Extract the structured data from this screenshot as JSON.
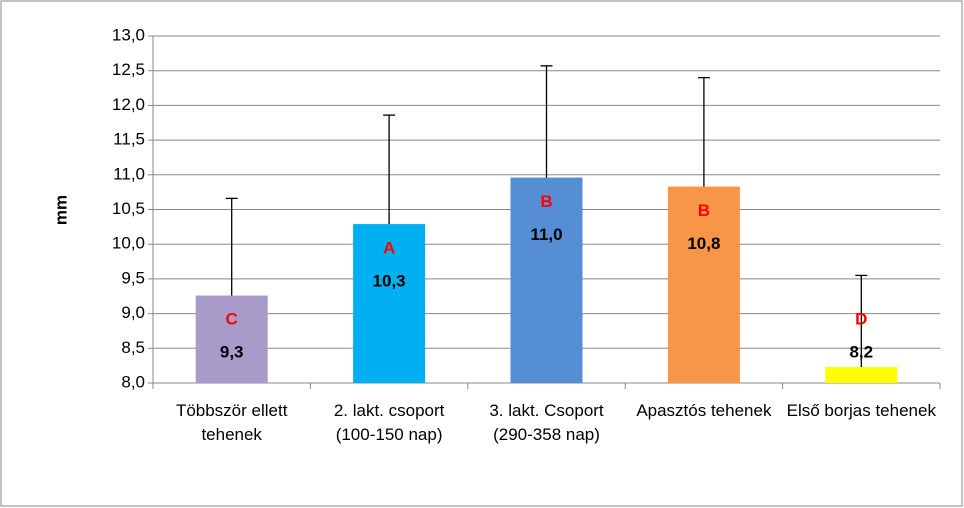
{
  "chart_data": {
    "type": "bar",
    "ylabel": "mm",
    "categories": [
      "Többször ellett tehenek",
      "2. lakt. csoport (100-150 nap)",
      "3. lakt. Csoport (290-358 nap)",
      "Apasztós tehenek",
      "Első borjas tehenek"
    ],
    "values": [
      9.26,
      10.29,
      10.96,
      10.83,
      8.23
    ],
    "value_labels": [
      "9,3",
      "10,3",
      "11,0",
      "10,8",
      "8,2"
    ],
    "errors": [
      1.4,
      1.57,
      1.61,
      1.57,
      1.32
    ],
    "letters": [
      "C",
      "A",
      "B",
      "B",
      "D"
    ],
    "colors": [
      "#a99bc9",
      "#00b0f0",
      "#558ed5",
      "#f79646",
      "#ffff00"
    ],
    "ylim": [
      8,
      13
    ],
    "yticks": [
      {
        "value": 8,
        "label": "8,0"
      },
      {
        "value": 8.5,
        "label": "8,5"
      },
      {
        "value": 9,
        "label": "9,0"
      },
      {
        "value": 9.5,
        "label": "9,5"
      },
      {
        "value": 10,
        "label": "10,0"
      },
      {
        "value": 10.5,
        "label": "10,5"
      },
      {
        "value": 11,
        "label": "11,0"
      },
      {
        "value": 11.5,
        "label": "11,5"
      },
      {
        "value": 12,
        "label": "12,0"
      },
      {
        "value": 12.5,
        "label": "12,5"
      },
      {
        "value": 13,
        "label": "13,0"
      }
    ],
    "grid": true
  }
}
